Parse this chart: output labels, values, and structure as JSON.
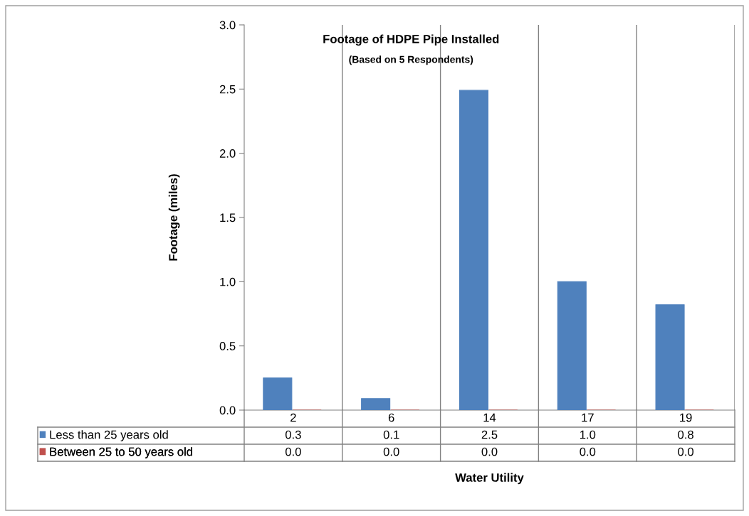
{
  "chart_data": {
    "type": "bar",
    "title": "Footage of HDPE Pipe Installed",
    "subtitle": "(Based on 5 Respondents)",
    "xlabel": "Water Utility",
    "ylabel": "Footage (miles)",
    "categories": [
      "2",
      "6",
      "14",
      "17",
      "19"
    ],
    "series": [
      {
        "name": "Less than 25 years old",
        "color": "#4f81bd",
        "values": [
          0.25,
          0.09,
          2.49,
          1.0,
          0.82
        ],
        "value_labels": [
          "0.3",
          "0.1",
          "2.5",
          "1.0",
          "0.8"
        ]
      },
      {
        "name": "Between 25 to 50 years old",
        "color": "#c0504d",
        "values": [
          0,
          0,
          0,
          0,
          0
        ],
        "value_labels": [
          "0.0",
          "0.0",
          "0.0",
          "0.0",
          "0.0"
        ]
      }
    ],
    "ylim": [
      0,
      3.0
    ],
    "yticks": [
      {
        "value": 0,
        "label": "0.0"
      },
      {
        "value": 0.5,
        "label": "0.5"
      },
      {
        "value": 1.0,
        "label": "1.0"
      },
      {
        "value": 1.5,
        "label": "1.5"
      },
      {
        "value": 2.0,
        "label": "2.0"
      },
      {
        "value": 2.5,
        "label": "2.5"
      },
      {
        "value": 3.0,
        "label": "3.0"
      }
    ],
    "grid": "x",
    "legend": "bottom"
  }
}
